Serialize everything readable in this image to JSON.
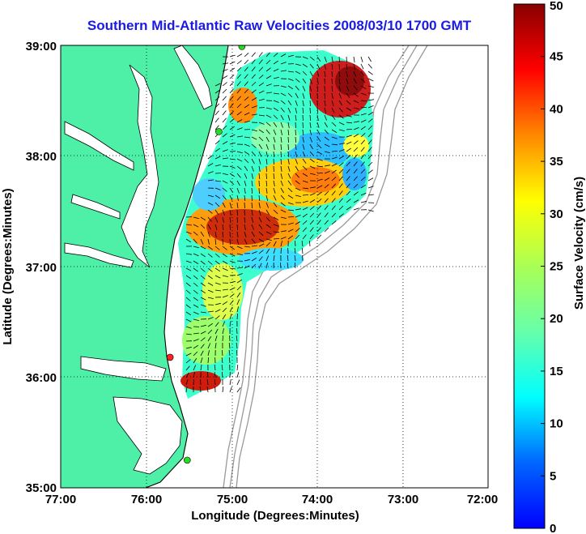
{
  "title": "Southern Mid-Atlantic Raw Velocities 2008/03/10 1700 GMT",
  "chart_data": {
    "type": "map",
    "x_ticks": [
      "77:00",
      "76:00",
      "75:00",
      "74:00",
      "73:00",
      "72:00"
    ],
    "y_ticks": [
      "39:00",
      "38:00",
      "37:00",
      "36:00",
      "35:00"
    ],
    "xlabel": "Longitude (Degrees:Minutes)",
    "ylabel": "Latitude (Degrees:Minutes)",
    "xlim": [
      -77,
      -72
    ],
    "ylim": [
      35,
      39
    ],
    "grid": true,
    "colorbar": {
      "label": "Surface Velocity (cm/s)",
      "ticks": [
        "0",
        "5",
        "10",
        "15",
        "20",
        "25",
        "30",
        "35",
        "40",
        "45",
        "50"
      ],
      "range": [
        0,
        50
      ],
      "colormap": "jet"
    },
    "land_color": "#4ef0a8",
    "coast_color": "#000000",
    "bathymetry_color": "#999999",
    "stations": [
      {
        "lon": -74.88,
        "lat": 38.99,
        "color": "#22dd22"
      },
      {
        "lon": -75.15,
        "lat": 38.22,
        "color": "#22dd22"
      },
      {
        "lon": -75.72,
        "lat": 36.18,
        "color": "#ff2222"
      },
      {
        "lon": -75.52,
        "lat": 35.25,
        "color": "#22dd22"
      }
    ]
  }
}
